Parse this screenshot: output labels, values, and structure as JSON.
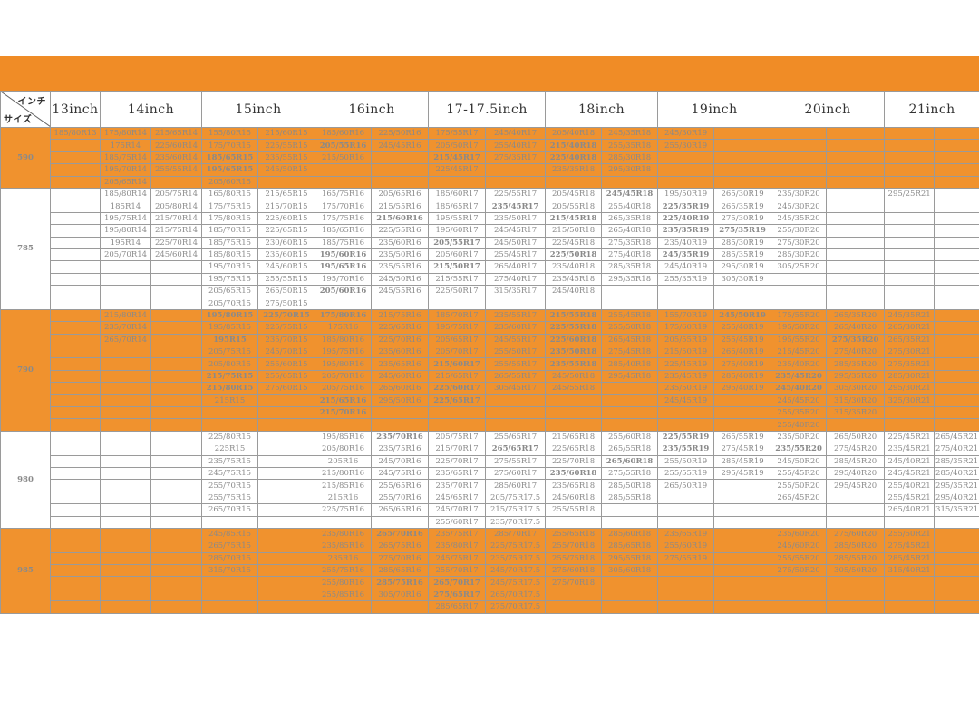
{
  "header": {
    "corner_top": "インチ",
    "corner_bottom": "サイズ",
    "columns": [
      "13inch",
      "14inch",
      "15inch",
      "16inch",
      "17-17.5inch",
      "18inch",
      "19inch",
      "20inch",
      "21inch"
    ]
  },
  "colors": {
    "orange": "#F0922E",
    "banner": "#F08C26"
  },
  "groups": [
    {
      "label": "590",
      "orange": true,
      "rows": [
        [
          "185/80R13",
          "175/80R14",
          "215/65R14",
          "155/80R15",
          "215/60R15",
          "185/60R16",
          "225/50R16",
          "175/55R17",
          "245/40R17",
          "205/40R18",
          "245/35R18",
          "245/30R19",
          "",
          "",
          "",
          "",
          ""
        ],
        [
          "",
          "175R14",
          "225/60R14",
          "175/70R15",
          "225/55R15",
          "205/55R16",
          "245/45R16",
          "205/50R17",
          "255/40R17",
          "215/40R18",
          "255/35R18",
          "255/30R19",
          "",
          "",
          "",
          "",
          ""
        ],
        [
          "",
          "185/75R14",
          "235/60R14",
          "185/65R15",
          "235/55R15",
          "215/50R16",
          "",
          "215/45R17",
          "275/35R17",
          "225/40R18",
          "285/30R18",
          "",
          "",
          "",
          "",
          "",
          ""
        ],
        [
          "",
          "195/70R14",
          "255/55R14",
          "195/65R15",
          "245/50R15",
          "",
          "",
          "225/45R17",
          "",
          "235/35R18",
          "295/30R18",
          "",
          "",
          "",
          "",
          "",
          ""
        ],
        [
          "",
          "205/65R14",
          "",
          "205/60R15",
          "",
          "",
          "",
          "",
          "",
          "",
          "",
          "",
          "",
          "",
          "",
          "",
          ""
        ]
      ],
      "bold": [
        "205/55R16",
        "185/65R15",
        "195/65R15",
        "215/45R17",
        "215/40R18",
        "225/40R18"
      ]
    },
    {
      "label": "785",
      "orange": false,
      "rows": [
        [
          "",
          "185/80R14",
          "205/75R14",
          "165/80R15",
          "215/65R15",
          "165/75R16",
          "205/65R16",
          "185/60R17",
          "225/55R17",
          "205/45R18",
          "245/45R18",
          "195/50R19",
          "265/30R19",
          "235/30R20",
          "",
          "295/25R21",
          ""
        ],
        [
          "",
          "185R14",
          "205/80R14",
          "175/75R15",
          "215/70R15",
          "175/70R16",
          "215/55R16",
          "185/65R17",
          "235/45R17",
          "205/55R18",
          "255/40R18",
          "225/35R19",
          "265/35R19",
          "245/30R20",
          "",
          "",
          ""
        ],
        [
          "",
          "195/75R14",
          "215/70R14",
          "175/80R15",
          "225/60R15",
          "175/75R16",
          "215/60R16",
          "195/55R17",
          "235/50R17",
          "215/45R18",
          "265/35R18",
          "225/40R19",
          "275/30R19",
          "245/35R20",
          "",
          "",
          ""
        ],
        [
          "",
          "195/80R14",
          "215/75R14",
          "185/70R15",
          "225/65R15",
          "185/65R16",
          "225/55R16",
          "195/60R17",
          "245/45R17",
          "215/50R18",
          "265/40R18",
          "235/35R19",
          "275/35R19",
          "255/30R20",
          "",
          "",
          ""
        ],
        [
          "",
          "195R14",
          "225/70R14",
          "185/75R15",
          "230/60R15",
          "185/75R16",
          "235/60R16",
          "205/55R17",
          "245/50R17",
          "225/45R18",
          "275/35R18",
          "235/40R19",
          "285/30R19",
          "275/30R20",
          "",
          "",
          ""
        ],
        [
          "",
          "205/70R14",
          "245/60R14",
          "185/80R15",
          "235/60R15",
          "195/60R16",
          "235/50R16",
          "205/60R17",
          "255/45R17",
          "225/50R18",
          "275/40R18",
          "245/35R19",
          "285/35R19",
          "285/30R20",
          "",
          "",
          ""
        ],
        [
          "",
          "",
          "",
          "195/70R15",
          "245/60R15",
          "195/65R16",
          "235/55R16",
          "215/50R17",
          "265/40R17",
          "235/40R18",
          "285/35R18",
          "245/40R19",
          "295/30R19",
          "305/25R20",
          "",
          "",
          ""
        ],
        [
          "",
          "",
          "",
          "195/75R15",
          "255/55R15",
          "195/70R16",
          "245/50R16",
          "215/55R17",
          "275/40R17",
          "235/45R18",
          "295/35R18",
          "255/35R19",
          "305/30R19",
          "",
          "",
          "",
          ""
        ],
        [
          "",
          "",
          "",
          "205/65R15",
          "265/50R15",
          "205/60R16",
          "245/55R16",
          "225/50R17",
          "315/35R17",
          "245/40R18",
          "",
          "",
          "",
          "",
          "",
          "",
          ""
        ],
        [
          "",
          "",
          "",
          "205/70R15",
          "275/50R15",
          "",
          "",
          "",
          "",
          "",
          "",
          "",
          "",
          "",
          "",
          "",
          ""
        ]
      ],
      "bold": [
        "195/60R16",
        "195/65R16",
        "205/60R16",
        "215/60R16",
        "205/55R17",
        "215/50R17",
        "235/45R17",
        "215/45R18",
        "225/50R18",
        "245/45R18",
        "225/35R19",
        "225/40R19",
        "235/35R19",
        "245/35R19",
        "275/35R19"
      ]
    },
    {
      "label": "790",
      "orange": true,
      "rows": [
        [
          "",
          "215/80R14",
          "",
          "195/80R15",
          "225/70R15",
          "175/80R16",
          "215/75R16",
          "185/70R17",
          "235/55R17",
          "215/55R18",
          "255/45R18",
          "155/70R19",
          "245/50R19",
          "175/55R20",
          "265/35R20",
          "245/35R21",
          ""
        ],
        [
          "",
          "235/70R14",
          "",
          "195/85R15",
          "225/75R15",
          "175R16",
          "225/65R16",
          "195/75R17",
          "235/60R17",
          "225/55R18",
          "255/50R18",
          "175/60R19",
          "255/40R19",
          "195/50R20",
          "265/40R20",
          "265/30R21",
          ""
        ],
        [
          "",
          "265/70R14",
          "",
          "195R15",
          "235/70R15",
          "185/80R16",
          "225/70R16",
          "205/65R17",
          "245/55R17",
          "225/60R18",
          "265/45R18",
          "205/55R19",
          "255/45R19",
          "195/55R20",
          "275/35R20",
          "265/35R21",
          ""
        ],
        [
          "",
          "",
          "",
          "205/75R15",
          "245/70R15",
          "195/75R16",
          "235/60R16",
          "205/70R17",
          "255/50R17",
          "235/50R18",
          "275/45R18",
          "215/50R19",
          "265/40R19",
          "215/45R20",
          "275/40R20",
          "275/30R21",
          ""
        ],
        [
          "",
          "",
          "",
          "205/80R15",
          "255/60R15",
          "195/80R16",
          "235/65R16",
          "215/60R17",
          "255/55R17",
          "235/55R18",
          "285/40R18",
          "225/45R19",
          "275/40R19",
          "235/40R20",
          "285/35R20",
          "275/35R21",
          ""
        ],
        [
          "",
          "",
          "",
          "215/75R15",
          "255/65R15",
          "205/70R16",
          "245/60R16",
          "215/65R17",
          "265/55R17",
          "245/50R18",
          "295/45R18",
          "235/45R19",
          "285/40R19",
          "235/45R20",
          "295/35R20",
          "285/30R21",
          ""
        ],
        [
          "",
          "",
          "",
          "215/80R15",
          "275/60R15",
          "205/75R16",
          "265/60R16",
          "225/60R17",
          "305/45R17",
          "245/55R18",
          "",
          "235/50R19",
          "295/40R19",
          "245/40R20",
          "305/30R20",
          "295/30R21",
          ""
        ],
        [
          "",
          "",
          "",
          "215R15",
          "",
          "215/65R16",
          "295/50R16",
          "225/65R17",
          "",
          "",
          "",
          "245/45R19",
          "",
          "245/45R20",
          "315/30R20",
          "325/30R21",
          ""
        ],
        [
          "",
          "",
          "",
          "",
          "",
          "215/70R16",
          "",
          "",
          "",
          "",
          "",
          "",
          "",
          "255/35R20",
          "315/35R20",
          "",
          ""
        ],
        [
          "",
          "",
          "",
          "",
          "",
          "",
          "",
          "",
          "",
          "",
          "",
          "",
          "",
          "255/40R20",
          "",
          "",
          ""
        ]
      ],
      "bold": [
        "195/80R15",
        "195R15",
        "215/75R15",
        "215/80R15",
        "225/70R15",
        "175/80R16",
        "215/65R16",
        "215/70R16",
        "215/60R17",
        "225/60R17",
        "225/65R17",
        "215/55R18",
        "225/55R18",
        "225/60R18",
        "235/50R18",
        "235/55R18",
        "245/50R19",
        "235/45R20",
        "245/40R20",
        "275/35R20"
      ]
    },
    {
      "label": "980",
      "orange": false,
      "rows": [
        [
          "",
          "",
          "",
          "225/80R15",
          "",
          "195/85R16",
          "235/70R16",
          "205/75R17",
          "255/65R17",
          "215/65R18",
          "255/60R18",
          "225/55R19",
          "265/55R19",
          "235/50R20",
          "265/50R20",
          "225/45R21",
          "265/45R21"
        ],
        [
          "",
          "",
          "",
          "225R15",
          "",
          "205/80R16",
          "235/75R16",
          "215/70R17",
          "265/65R17",
          "225/65R18",
          "265/55R18",
          "235/55R19",
          "275/45R19",
          "235/55R20",
          "275/45R20",
          "235/45R21",
          "275/40R21"
        ],
        [
          "",
          "",
          "",
          "235/75R15",
          "",
          "205R16",
          "245/70R16",
          "225/70R17",
          "275/55R17",
          "225/70R18",
          "265/60R18",
          "255/50R19",
          "285/45R19",
          "245/50R20",
          "285/45R20",
          "245/40R21",
          "285/35R21"
        ],
        [
          "",
          "",
          "",
          "245/75R15",
          "",
          "215/80R16",
          "245/75R16",
          "235/65R17",
          "275/60R17",
          "235/60R18",
          "275/55R18",
          "255/55R19",
          "295/45R19",
          "255/45R20",
          "295/40R20",
          "245/45R21",
          "285/40R21"
        ],
        [
          "",
          "",
          "",
          "255/70R15",
          "",
          "215/85R16",
          "255/65R16",
          "235/70R17",
          "285/60R17",
          "235/65R18",
          "285/50R18",
          "265/50R19",
          "",
          "255/50R20",
          "295/45R20",
          "255/40R21",
          "295/35R21"
        ],
        [
          "",
          "",
          "",
          "255/75R15",
          "",
          "215R16",
          "255/70R16",
          "245/65R17",
          "205/75R17.5",
          "245/60R18",
          "285/55R18",
          "",
          "",
          "265/45R20",
          "",
          "255/45R21",
          "295/40R21"
        ],
        [
          "",
          "",
          "",
          "265/70R15",
          "",
          "225/75R16",
          "265/65R16",
          "245/70R17",
          "215/75R17.5",
          "255/55R18",
          "",
          "",
          "",
          "",
          "",
          "265/40R21",
          "315/35R21"
        ],
        [
          "",
          "",
          "",
          "",
          "",
          "",
          "",
          "255/60R17",
          "235/70R17.5",
          "",
          "",
          "",
          "",
          "",
          "",
          "",
          ""
        ]
      ],
      "bold": [
        "235/70R16",
        "265/65R17",
        "235/60R18",
        "265/60R18",
        "225/55R19",
        "235/55R19",
        "235/55R20"
      ]
    },
    {
      "label": "985",
      "orange": true,
      "rows": [
        [
          "",
          "",
          "",
          "245/85R15",
          "",
          "235/80R16",
          "265/70R16",
          "235/75R17",
          "285/70R17",
          "255/65R18",
          "285/60R18",
          "235/65R19",
          "",
          "235/60R20",
          "275/60R20",
          "255/50R21",
          ""
        ],
        [
          "",
          "",
          "",
          "265/75R15",
          "",
          "235/85R16",
          "265/75R16",
          "235/80R17",
          "225/75R17.5",
          "255/70R18",
          "285/65R18",
          "255/60R19",
          "",
          "245/60R20",
          "285/50R20",
          "275/45R21",
          ""
        ],
        [
          "",
          "",
          "",
          "285/70R15",
          "",
          "235R16",
          "275/70R16",
          "245/75R17",
          "235/75R17.5",
          "255/75R18",
          "295/55R18",
          "275/55R19",
          "",
          "255/55R20",
          "285/55R20",
          "285/45R21",
          ""
        ],
        [
          "",
          "",
          "",
          "315/70R15",
          "",
          "255/75R16",
          "285/65R16",
          "255/70R17",
          "245/70R17.5",
          "275/60R18",
          "305/60R18",
          "",
          "",
          "275/50R20",
          "305/50R20",
          "315/40R21",
          ""
        ],
        [
          "",
          "",
          "",
          "",
          "",
          "255/80R16",
          "285/75R16",
          "265/70R17",
          "245/75R17.5",
          "275/70R18",
          "",
          "",
          "",
          "",
          "",
          "",
          ""
        ],
        [
          "",
          "",
          "",
          "",
          "",
          "255/85R16",
          "305/70R16",
          "275/65R17",
          "265/70R17.5",
          "",
          "",
          "",
          "",
          "",
          "",
          "",
          ""
        ],
        [
          "",
          "",
          "",
          "",
          "",
          "",
          "",
          "285/65R17",
          "275/70R17.5",
          "",
          "",
          "",
          "",
          "",
          "",
          "",
          ""
        ]
      ],
      "bold": [
        "265/70R16",
        "285/75R16",
        "265/70R17",
        "275/65R17"
      ]
    }
  ]
}
